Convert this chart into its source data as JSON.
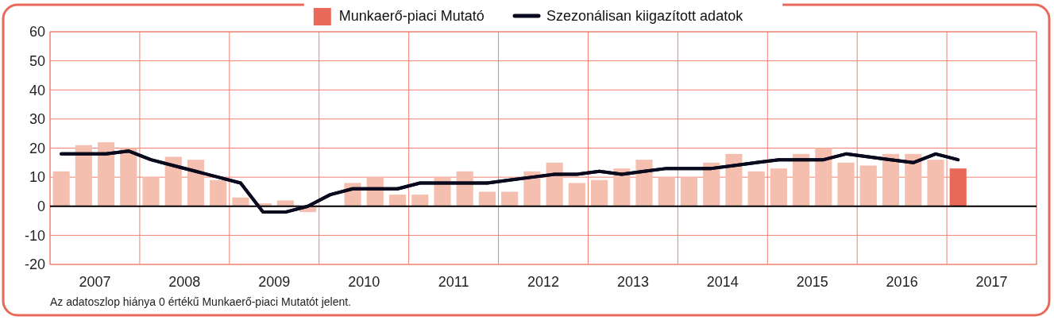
{
  "chart_data": {
    "type": "bar",
    "x": [
      2007.125,
      2007.375,
      2007.625,
      2007.875,
      2008.125,
      2008.375,
      2008.625,
      2008.875,
      2009.125,
      2009.375,
      2009.625,
      2009.875,
      2010.125,
      2010.375,
      2010.625,
      2010.875,
      2011.125,
      2011.375,
      2011.625,
      2011.875,
      2012.125,
      2012.375,
      2012.625,
      2012.875,
      2013.125,
      2013.375,
      2013.625,
      2013.875,
      2014.125,
      2014.375,
      2014.625,
      2014.875,
      2015.125,
      2015.375,
      2015.625,
      2015.875,
      2016.125,
      2016.375,
      2016.625,
      2016.875,
      2017.125
    ],
    "series": [
      {
        "name": "Munkaerő-piaci Mutató",
        "color": "#e8695a",
        "colors": [
          "#f5bfb0",
          "#f5bfb0",
          "#f5bfb0",
          "#f5bfb0",
          "#f5bfb0",
          "#f5bfb0",
          "#f5bfb0",
          "#f5bfb0",
          "#f5bfb0",
          "#f5bfb0",
          "#f5bfb0",
          "#f5bfb0",
          "#f5bfb0",
          "#f5bfb0",
          "#f5bfb0",
          "#f5bfb0",
          "#f5bfb0",
          "#f5bfb0",
          "#f5bfb0",
          "#f5bfb0",
          "#f5bfb0",
          "#f5bfb0",
          "#f5bfb0",
          "#f5bfb0",
          "#f5bfb0",
          "#f5bfb0",
          "#f5bfb0",
          "#f5bfb0",
          "#f5bfb0",
          "#f5bfb0",
          "#f5bfb0",
          "#f5bfb0",
          "#f5bfb0",
          "#f5bfb0",
          "#f5bfb0",
          "#f5bfb0",
          "#f5bfb0",
          "#f5bfb0",
          "#f5bfb0",
          "#f5bfb0",
          "#e8695a"
        ],
        "values": [
          12,
          21,
          22,
          20,
          10,
          17,
          16,
          9,
          3,
          1,
          2,
          -2,
          0,
          8,
          10,
          4,
          4,
          10,
          12,
          5,
          5,
          12,
          15,
          8,
          9,
          13,
          16,
          10,
          10,
          15,
          18,
          12,
          13,
          18,
          20,
          15,
          14,
          18,
          18,
          16,
          13
        ]
      },
      {
        "name": "Szezonálisan kiigazított adatok",
        "type": "line",
        "color": "#0a0a1e",
        "values": [
          18,
          18,
          18,
          19,
          16,
          14,
          12,
          10,
          8,
          -2,
          -2,
          0,
          4,
          6,
          6,
          6,
          8,
          8,
          8,
          8,
          9,
          10,
          11,
          11,
          12,
          11,
          12,
          13,
          13,
          13,
          14,
          15,
          16,
          16,
          16,
          18,
          17,
          16,
          15,
          18,
          16
        ]
      }
    ],
    "xlim": [
      2007,
      2018
    ],
    "xticks": [
      {
        "value": 2007,
        "label": null
      },
      {
        "value": 2007.5,
        "label": "2007"
      },
      {
        "value": 2008,
        "label": null
      },
      {
        "value": 2008.5,
        "label": "2008"
      },
      {
        "value": 2009,
        "label": null
      },
      {
        "value": 2009.5,
        "label": "2009"
      },
      {
        "value": 2010,
        "label": null
      },
      {
        "value": 2010.5,
        "label": "2010"
      },
      {
        "value": 2011,
        "label": null
      },
      {
        "value": 2011.5,
        "label": "2011"
      },
      {
        "value": 2012,
        "label": null
      },
      {
        "value": 2012.5,
        "label": "2012"
      },
      {
        "value": 2013,
        "label": null
      },
      {
        "value": 2013.5,
        "label": "2013"
      },
      {
        "value": 2014,
        "label": null
      },
      {
        "value": 2014.5,
        "label": "2014"
      },
      {
        "value": 2015,
        "label": null
      },
      {
        "value": 2015.5,
        "label": "2015"
      },
      {
        "value": 2016,
        "label": null
      },
      {
        "value": 2016.5,
        "label": "2016"
      },
      {
        "value": 2017,
        "label": null
      },
      {
        "value": 2017.5,
        "label": "2017"
      },
      {
        "value": 2018,
        "label": null
      }
    ],
    "ylim": [
      -20,
      60
    ],
    "yticks": [
      -20,
      -10,
      0,
      10,
      20,
      30,
      40,
      50,
      60
    ],
    "grid": true,
    "legend": "top",
    "ref_lines": [
      {
        "axis": "y",
        "value": 0,
        "color": "#000000"
      }
    ],
    "annotations": [
      "Az adatoszlop hiánya 0 értékű Munkaerő-piaci Mutatót jelent."
    ]
  }
}
